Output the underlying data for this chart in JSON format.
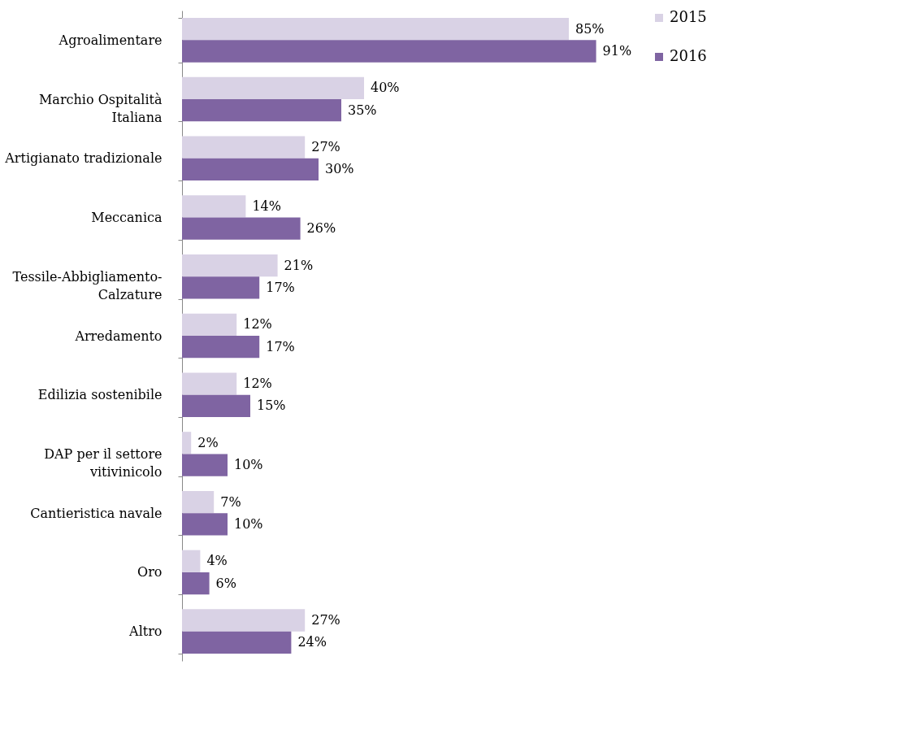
{
  "chart_data": {
    "type": "bar",
    "orientation": "horizontal",
    "legend": "right",
    "categories": [
      "Agroalimentare",
      "Marchio Ospitalità\nItaliana",
      "Artigianato tradizionale",
      "Meccanica",
      "Tessile-Abbigliamento-\nCalzature",
      "Arredamento",
      "Edilizia sostenibile",
      "DAP per il settore\nvitivinicolo",
      "Cantieristica navale",
      "Oro",
      "Altro"
    ],
    "series": [
      {
        "name": "2015",
        "color": "#d9d2e5",
        "values": [
          85,
          40,
          27,
          14,
          21,
          12,
          12,
          2,
          7,
          4,
          27
        ],
        "value_labels": [
          "85%",
          "40%",
          "27%",
          "14%",
          "21%",
          "12%",
          "12%",
          "2%",
          "7%",
          "4%",
          "27%"
        ]
      },
      {
        "name": "2016",
        "color": "#7f64a2",
        "values": [
          91,
          35,
          30,
          26,
          17,
          17,
          15,
          10,
          10,
          6,
          24
        ],
        "value_labels": [
          "91%",
          "35%",
          "30%",
          "26%",
          "17%",
          "17%",
          "15%",
          "10%",
          "10%",
          "6%",
          "24%"
        ]
      }
    ]
  }
}
